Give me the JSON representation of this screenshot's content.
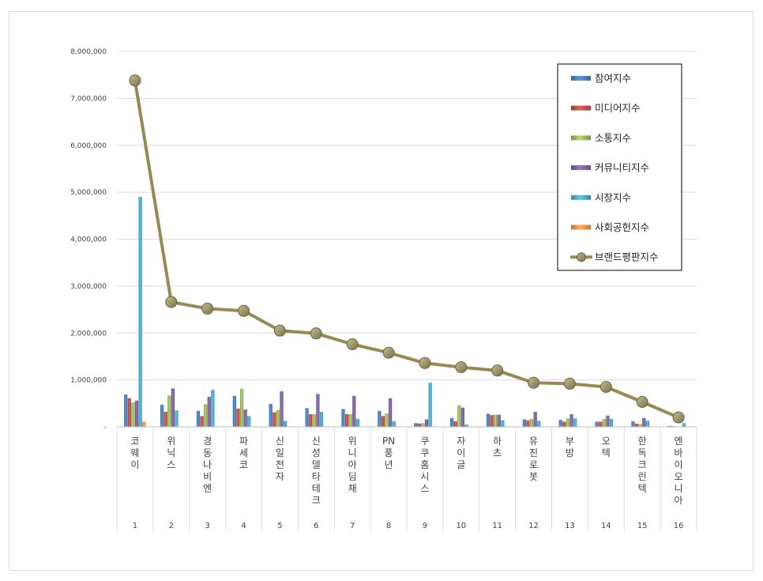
{
  "chart_data": {
    "type": "bar",
    "title": "",
    "xlabel": "",
    "ylabel": "",
    "ylim": [
      0,
      8000000
    ],
    "yticks": [
      0,
      1000000,
      2000000,
      3000000,
      4000000,
      5000000,
      6000000,
      7000000,
      8000000
    ],
    "ytick_labels": [
      "-",
      "1,000,000",
      "2,000,000",
      "3,000,000",
      "4,000,000",
      "5,000,000",
      "6,000,000",
      "7,000,000",
      "8,000,000"
    ],
    "categories": [
      "코웨이",
      "위닉스",
      "경동나비엔",
      "파세코",
      "신일전자",
      "신성델타테크",
      "위니아딤채",
      "PN풍년",
      "쿠쿠홈시스",
      "자이글",
      "하츠",
      "유진로봇",
      "부방",
      "오텍",
      "한독크린텍",
      "엔바이오니아"
    ],
    "ranks": [
      "1",
      "2",
      "3",
      "4",
      "5",
      "6",
      "7",
      "8",
      "9",
      "10",
      "11",
      "12",
      "13",
      "14",
      "15",
      "16"
    ],
    "grid": true,
    "legend_position": "top-right",
    "series": [
      {
        "name": "참여지수",
        "kind": "bar",
        "color": "#4f81bd",
        "values": [
          690000,
          470000,
          340000,
          660000,
          490000,
          400000,
          380000,
          340000,
          80000,
          190000,
          280000,
          160000,
          150000,
          110000,
          120000,
          20000
        ]
      },
      {
        "name": "미디어지수",
        "kind": "bar",
        "color": "#c0504d",
        "values": [
          610000,
          320000,
          230000,
          390000,
          310000,
          270000,
          270000,
          230000,
          70000,
          120000,
          250000,
          140000,
          110000,
          110000,
          70000,
          15000
        ]
      },
      {
        "name": "소통지수",
        "kind": "bar",
        "color": "#9bbb59",
        "values": [
          520000,
          670000,
          480000,
          810000,
          360000,
          270000,
          270000,
          290000,
          80000,
          460000,
          260000,
          170000,
          180000,
          170000,
          60000,
          10000
        ]
      },
      {
        "name": "커뮤니티지수",
        "kind": "bar",
        "color": "#8064a2",
        "values": [
          560000,
          820000,
          640000,
          370000,
          760000,
          700000,
          660000,
          610000,
          160000,
          410000,
          260000,
          320000,
          270000,
          240000,
          190000,
          10000
        ]
      },
      {
        "name": "시장지수",
        "kind": "bar",
        "color": "#4bacc6",
        "values": [
          4900000,
          350000,
          790000,
          230000,
          130000,
          320000,
          170000,
          120000,
          940000,
          50000,
          140000,
          130000,
          180000,
          170000,
          130000,
          80000
        ]
      },
      {
        "name": "사회공헌지수",
        "kind": "bar",
        "color": "#f79646",
        "values": [
          110000,
          10000,
          10000,
          10000,
          10000,
          10000,
          10000,
          10000,
          10000,
          10000,
          10000,
          10000,
          10000,
          10000,
          10000,
          10000
        ]
      },
      {
        "name": "브랜드평판지수",
        "kind": "line",
        "color": "#948a54",
        "values": [
          7380000,
          2660000,
          2520000,
          2470000,
          2050000,
          1990000,
          1760000,
          1580000,
          1360000,
          1270000,
          1200000,
          940000,
          920000,
          850000,
          530000,
          200000
        ]
      }
    ]
  }
}
